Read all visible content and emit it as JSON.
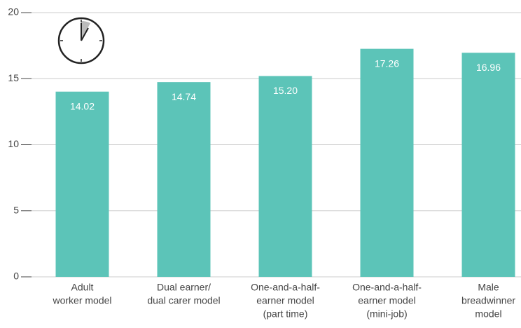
{
  "chart_data": {
    "type": "bar",
    "categories": [
      [
        "Adult",
        "worker model"
      ],
      [
        "Dual earner/",
        "dual carer model"
      ],
      [
        "One-and-a-half-",
        "earner model",
        "(part time)"
      ],
      [
        "One-and-a-half-",
        "earner model",
        "(mini-job)"
      ],
      [
        "Male",
        "breadwinner",
        "model"
      ]
    ],
    "values": [
      14.02,
      14.74,
      15.2,
      17.26,
      16.96
    ],
    "value_labels": [
      "14.02",
      "14.74",
      "15.20",
      "17.26",
      "16.96"
    ],
    "color": "#5cc4b8",
    "ylim": [
      0,
      20
    ],
    "yticks": [
      0,
      5,
      10,
      15,
      20
    ],
    "grid": true
  }
}
